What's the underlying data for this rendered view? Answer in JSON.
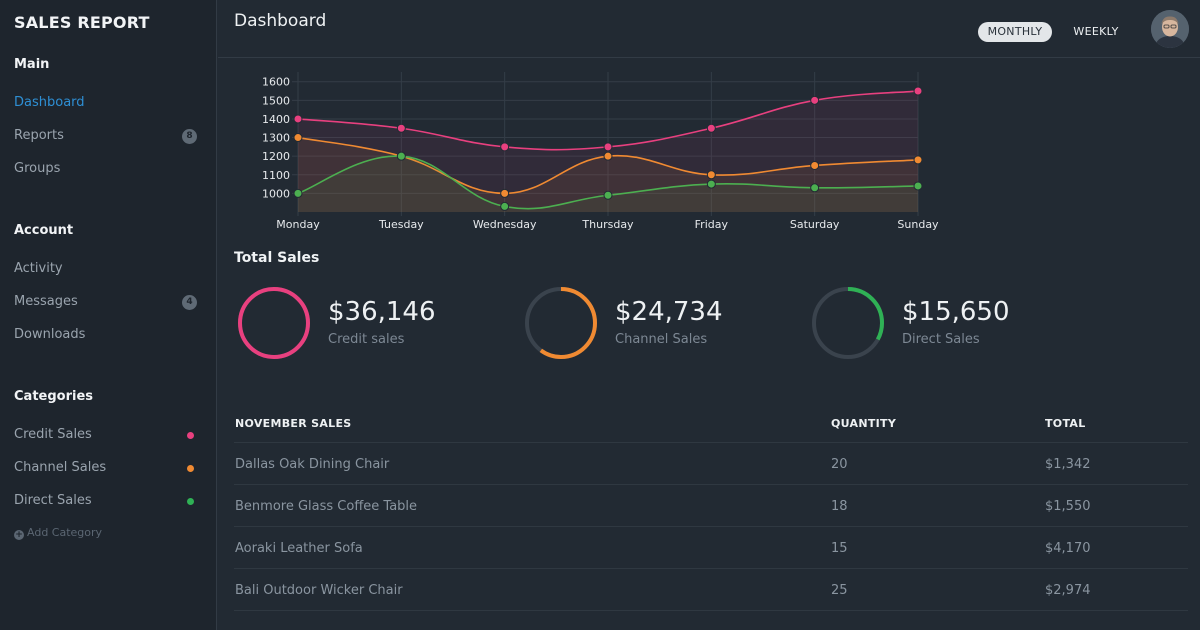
{
  "sidebar": {
    "brand": "SALES REPORT",
    "sections": {
      "main": {
        "title": "Main",
        "items": [
          {
            "label": "Dashboard",
            "active": true
          },
          {
            "label": "Reports",
            "badge": "8"
          },
          {
            "label": "Groups"
          }
        ]
      },
      "account": {
        "title": "Account",
        "items": [
          {
            "label": "Activity"
          },
          {
            "label": "Messages",
            "badge": "4"
          },
          {
            "label": "Downloads"
          }
        ]
      },
      "categories": {
        "title": "Categories",
        "items": [
          {
            "label": "Credit Sales",
            "color": "#e8407f"
          },
          {
            "label": "Channel Sales",
            "color": "#f08a32"
          },
          {
            "label": "Direct Sales",
            "color": "#2fb155"
          }
        ],
        "add_label": "Add Category"
      }
    }
  },
  "header": {
    "title": "Dashboard",
    "toggle": {
      "monthly": "MONTHLY",
      "weekly": "WEEKLY",
      "selected": "MONTHLY"
    },
    "avatar_icon": "user-avatar"
  },
  "chart_data": {
    "type": "line",
    "categories": [
      "Monday",
      "Tuesday",
      "Wednesday",
      "Thursday",
      "Friday",
      "Saturday",
      "Sunday"
    ],
    "yticks": [
      1000,
      1100,
      1200,
      1300,
      1400,
      1500,
      1600
    ],
    "ylim": [
      900,
      1620
    ],
    "grid": true,
    "series": [
      {
        "color": "#e8407f",
        "values": [
          1400,
          1350,
          1250,
          1250,
          1350,
          1500,
          1550
        ]
      },
      {
        "color": "#f08a32",
        "values": [
          1300,
          1200,
          1000,
          1200,
          1100,
          1150,
          1180
        ]
      },
      {
        "color": "#4caf50",
        "values": [
          1000,
          1200,
          930,
          990,
          1050,
          1030,
          1040
        ]
      }
    ]
  },
  "total_sales": {
    "title": "Total Sales",
    "stats": [
      {
        "value": "$36,146",
        "label": "Credit sales",
        "color": "#e8407f",
        "fraction": 1.0
      },
      {
        "value": "$24,734",
        "label": "Channel Sales",
        "color": "#f08a32",
        "fraction": 0.6
      },
      {
        "value": "$15,650",
        "label": "Direct Sales",
        "color": "#2fb155",
        "fraction": 0.33
      }
    ]
  },
  "table": {
    "headers": [
      "NOVEMBER SALES",
      "QUANTITY",
      "TOTAL"
    ],
    "rows": [
      [
        "Dallas Oak Dining Chair",
        "20",
        "$1,342"
      ],
      [
        "Benmore Glass Coffee Table",
        "18",
        "$1,550"
      ],
      [
        "Aoraki Leather Sofa",
        "15",
        "$4,170"
      ],
      [
        "Bali Outdoor Wicker Chair",
        "25",
        "$2,974"
      ]
    ]
  }
}
